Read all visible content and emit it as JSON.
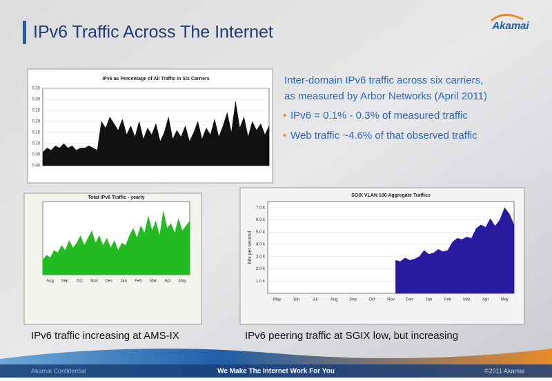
{
  "header": {
    "title": "IPv6 Traffic Across The Internet",
    "logo": "Akamai"
  },
  "summary": {
    "lines": [
      "Inter-domain IPv6 traffic across six carriers,",
      "as measured by Arbor Networks (April 2011)"
    ],
    "bullets": [
      "IPv6 = 0.1% - 0.3% of measured traffic",
      "Web traffic ~4.6% of that observed traffic"
    ]
  },
  "chart_data": [
    {
      "type": "area",
      "title": "IPv6 as Percentage of All Traffic in Six Carriers",
      "color": "#111111",
      "values": [
        0.06,
        0.08,
        0.07,
        0.09,
        0.08,
        0.1,
        0.08,
        0.09,
        0.07,
        0.08,
        0.08,
        0.09,
        0.08,
        0.07,
        0.2,
        0.17,
        0.22,
        0.19,
        0.16,
        0.21,
        0.14,
        0.18,
        0.13,
        0.2,
        0.12,
        0.17,
        0.14,
        0.19,
        0.11,
        0.15,
        0.22,
        0.12,
        0.16,
        0.13,
        0.18,
        0.11,
        0.15,
        0.2,
        0.12,
        0.17,
        0.14,
        0.21,
        0.13,
        0.18,
        0.24,
        0.15,
        0.29,
        0.17,
        0.22,
        0.13,
        0.2,
        0.16,
        0.19,
        0.14,
        0.18
      ],
      "ylim": [
        0,
        0.35
      ],
      "yticks": [
        {
          "value": 0,
          "label": "0.00"
        },
        {
          "value": 0.05,
          "label": "0.05"
        },
        {
          "value": 0.1,
          "label": "0.10"
        },
        {
          "value": 0.15,
          "label": "0.15"
        },
        {
          "value": 0.2,
          "label": "0.20"
        },
        {
          "value": 0.25,
          "label": "0.25"
        },
        {
          "value": 0.3,
          "label": "0.30"
        },
        {
          "value": 0.35,
          "label": "0.35"
        }
      ],
      "grid": true
    },
    {
      "type": "area",
      "title": "Total IPv6 Traffic - yearly",
      "color": "#22bb22",
      "values": [
        0.6,
        0.8,
        0.7,
        1.0,
        0.9,
        1.2,
        1.0,
        1.4,
        1.1,
        1.3,
        1.6,
        1.2,
        1.5,
        1.8,
        1.3,
        1.6,
        1.2,
        1.5,
        1.1,
        1.4,
        1.0,
        1.3,
        1.2,
        1.6,
        1.9,
        1.5,
        2.0,
        1.7,
        2.4,
        1.8,
        2.2,
        1.6,
        2.6,
        1.9,
        2.1,
        1.7,
        2.3,
        1.8,
        2.0,
        2.2
      ],
      "ylim": [
        0,
        3
      ],
      "x_labels": [
        "Aug",
        "Sep",
        "Oct",
        "Nov",
        "Dec",
        "Jan",
        "Feb",
        "Mar",
        "Apr",
        "May"
      ],
      "grid": true
    },
    {
      "type": "area",
      "title": "SGIX VLAN 106 Aggregate Traffics",
      "y_label": "bits per second",
      "color": "#2a1aa0",
      "values": [
        null,
        null,
        null,
        null,
        null,
        null,
        null,
        null,
        null,
        null,
        null,
        null,
        null,
        null,
        null,
        null,
        null,
        null,
        null,
        null,
        null,
        null,
        null,
        null,
        null,
        null,
        null,
        2700,
        2600,
        2900,
        2700,
        2800,
        3000,
        3500,
        3200,
        3300,
        3600,
        3400,
        3500,
        4200,
        4500,
        4400,
        4600,
        4500,
        5300,
        5600,
        5400,
        6100,
        5500,
        6000,
        7000,
        6500,
        5600
      ],
      "ylim": [
        0,
        7500
      ],
      "yticks": [
        {
          "value": 1000,
          "label": "1.0 k"
        },
        {
          "value": 2000,
          "label": "2.0 k"
        },
        {
          "value": 3000,
          "label": "3.0 k"
        },
        {
          "value": 4000,
          "label": "4.0 k"
        },
        {
          "value": 5000,
          "label": "5.0 k"
        },
        {
          "value": 6000,
          "label": "6.0 k"
        },
        {
          "value": 7000,
          "label": "7.0 k"
        }
      ],
      "x_labels": [
        "May",
        "Jun",
        "Jul",
        "Aug",
        "Sep",
        "Oct",
        "Nov",
        "Dec",
        "Jan",
        "Feb",
        "Mar",
        "Apr",
        "May"
      ],
      "grid": true
    }
  ],
  "captions": [
    "IPv6 traffic increasing at AMS-IX",
    "IPv6 peering traffic at SGIX low, but increasing"
  ],
  "footer": {
    "left": "Akamai Confidential",
    "center": "We Make The Internet Work For You",
    "right": "©2011 Akamai"
  }
}
